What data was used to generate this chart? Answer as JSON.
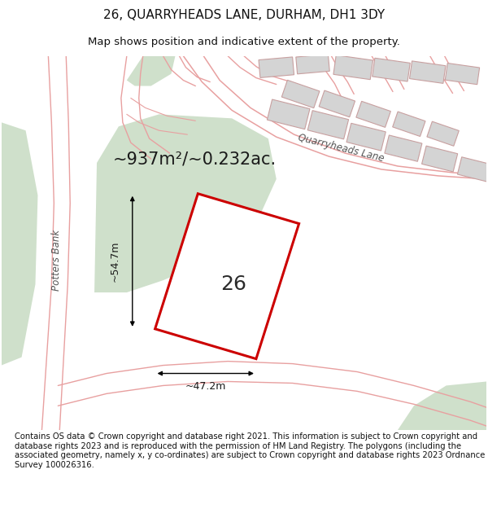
{
  "title": "26, QUARRYHEADS LANE, DURHAM, DH1 3DY",
  "subtitle": "Map shows position and indicative extent of the property.",
  "footer": "Contains OS data © Crown copyright and database right 2021. This information is subject to Crown copyright and database rights 2023 and is reproduced with the permission of HM Land Registry. The polygons (including the associated geometry, namely x, y co-ordinates) are subject to Crown copyright and database rights 2023 Ordnance Survey 100026316.",
  "area_label": "~937m²/~0.232ac.",
  "number_label": "26",
  "width_label": "~47.2m",
  "height_label": "~54.7m",
  "bg_color": "#ffffff",
  "map_bg": "#ffffff",
  "green_area": "#cfe0cb",
  "road_stroke": "#e8a0a0",
  "property_stroke": "#cc0000",
  "property_fill": "#ffffff",
  "house_fill": "#d4d4d4",
  "house_edge": "#c8a0a0",
  "title_fontsize": 11,
  "subtitle_fontsize": 9.5,
  "footer_fontsize": 7.2,
  "area_fontsize": 15,
  "number_fontsize": 18,
  "dim_fontsize": 9,
  "road_label_fontsize": 8.5
}
